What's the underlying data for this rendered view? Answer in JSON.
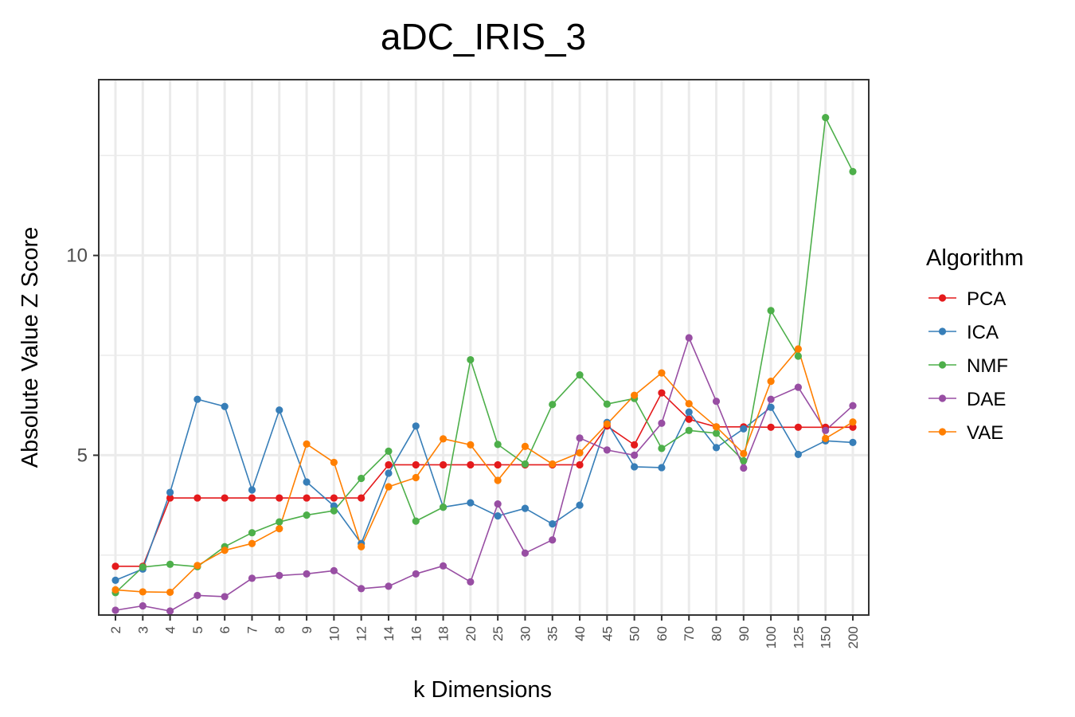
{
  "chart_data": {
    "type": "line",
    "title": "aDC_IRIS_3",
    "xlabel": "k Dimensions",
    "ylabel": "Absolute Value Z Score",
    "categories": [
      "2",
      "3",
      "4",
      "5",
      "6",
      "7",
      "8",
      "9",
      "10",
      "12",
      "14",
      "16",
      "18",
      "20",
      "25",
      "30",
      "35",
      "40",
      "45",
      "50",
      "60",
      "70",
      "80",
      "90",
      "100",
      "125",
      "150",
      "200"
    ],
    "yticks": [
      5,
      10
    ],
    "ylim": [
      1.0,
      14.4
    ],
    "grid": true,
    "legend": {
      "title": "Algorithm",
      "placement": "right"
    },
    "series": [
      {
        "name": "PCA",
        "color": "#e41a1c",
        "values": [
          2.22,
          2.22,
          3.93,
          3.93,
          3.93,
          3.93,
          3.93,
          3.93,
          3.93,
          3.93,
          4.76,
          4.76,
          4.76,
          4.76,
          4.76,
          4.76,
          4.76,
          4.76,
          5.73,
          5.26,
          6.56,
          5.9,
          5.71,
          5.71,
          5.7,
          5.7,
          5.7,
          5.7
        ]
      },
      {
        "name": "ICA",
        "color": "#377eb8",
        "values": [
          1.87,
          2.15,
          4.07,
          6.4,
          6.22,
          4.13,
          6.13,
          4.33,
          3.73,
          2.79,
          4.55,
          5.73,
          3.7,
          3.81,
          3.48,
          3.67,
          3.28,
          3.75,
          5.82,
          4.71,
          4.69,
          6.08,
          5.19,
          5.66,
          6.2,
          5.02,
          5.36,
          5.32
        ]
      },
      {
        "name": "NMF",
        "color": "#4daf4a",
        "values": [
          1.56,
          2.2,
          2.27,
          2.21,
          2.71,
          3.06,
          3.33,
          3.5,
          3.61,
          4.42,
          5.1,
          3.35,
          3.7,
          7.39,
          5.27,
          4.78,
          6.27,
          7.01,
          6.28,
          6.42,
          5.17,
          5.62,
          5.55,
          4.86,
          8.62,
          7.48,
          13.45,
          12.1
        ]
      },
      {
        "name": "DAE",
        "color": "#984ea3",
        "values": [
          1.12,
          1.23,
          1.1,
          1.49,
          1.46,
          1.92,
          1.99,
          2.03,
          2.11,
          1.66,
          1.72,
          2.03,
          2.23,
          1.83,
          3.78,
          2.55,
          2.88,
          5.43,
          5.13,
          5.0,
          5.8,
          7.94,
          6.35,
          4.68,
          6.4,
          6.7,
          5.62,
          6.24
        ]
      },
      {
        "name": "VAE",
        "color": "#ff7f00",
        "values": [
          1.63,
          1.58,
          1.57,
          2.24,
          2.62,
          2.79,
          3.16,
          5.28,
          4.82,
          2.71,
          4.21,
          4.44,
          5.41,
          5.26,
          4.37,
          5.22,
          4.78,
          5.06,
          5.78,
          6.5,
          7.06,
          6.29,
          5.71,
          5.04,
          6.85,
          7.66,
          5.42,
          5.83
        ]
      }
    ]
  }
}
